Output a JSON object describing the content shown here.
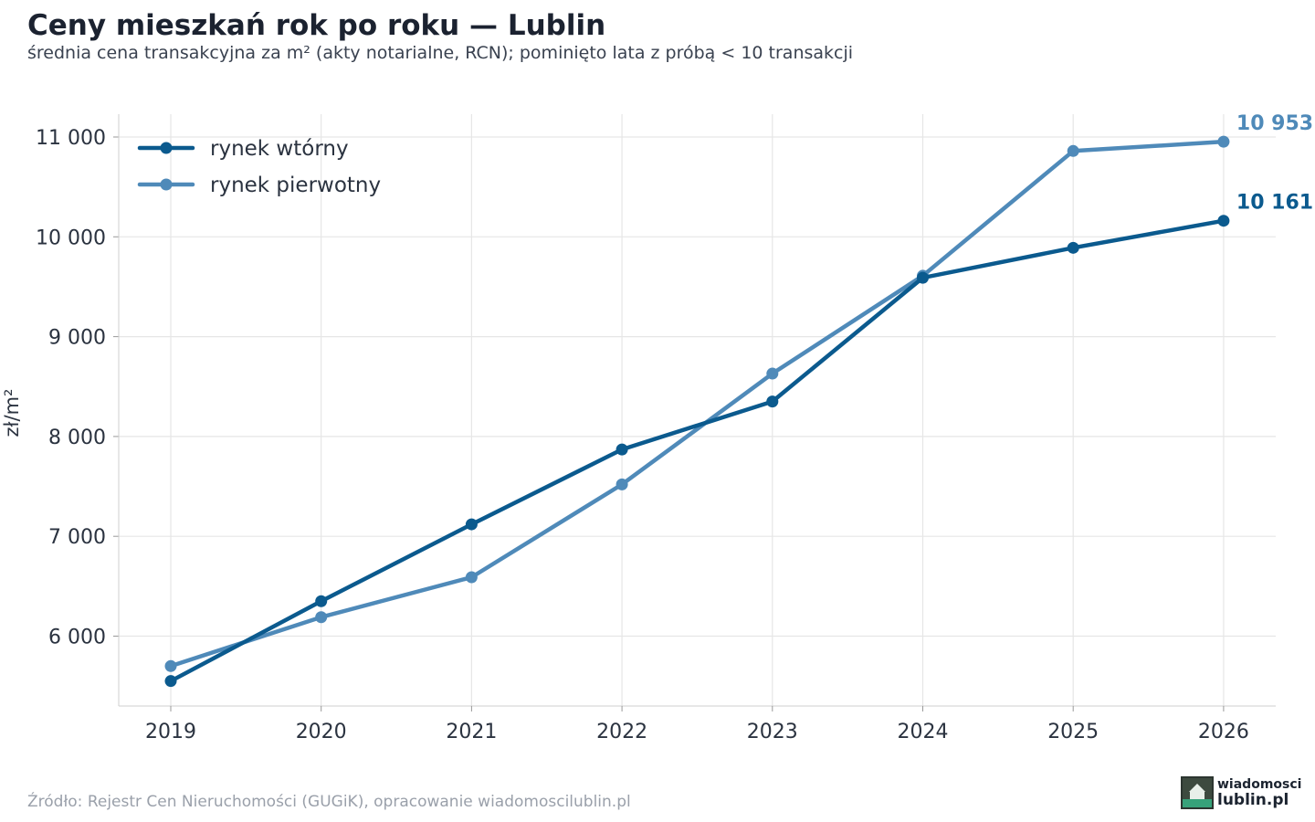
{
  "title": "Ceny mieszkań rok po roku — Lublin",
  "subtitle": "średnia cena transakcyjna za m² (akty notarialne, RCN); pominięto lata z próbą < 10 transakcji",
  "source": "Źródło: Rejestr Cen Nieruchomości (GUGiK), opracowanie wiadomoscilublin.pl",
  "logo": {
    "line1": "wiadomosci",
    "line2": "lublin.pl",
    "icon": "house-logo-icon"
  },
  "colors": {
    "secondary": "#0b5a8e",
    "primary": "#4f8ab9",
    "grid": "#e6e6e6",
    "axis_text": "#2b3340"
  },
  "chart_data": {
    "type": "line",
    "title": "Ceny mieszkań rok po roku — Lublin",
    "ylabel": "zł/m²",
    "xlabel": "",
    "x": [
      2019,
      2020,
      2021,
      2022,
      2023,
      2024,
      2025,
      2026
    ],
    "x_tick_labels": [
      "2019",
      "2020",
      "2021",
      "2022",
      "2023",
      "2024",
      "2025",
      "2026"
    ],
    "ylim": [
      4300,
      11200
    ],
    "y_ticks": [
      6000,
      7000,
      8000,
      9000,
      10000,
      11000
    ],
    "y_tick_labels": [
      "6 000",
      "7 000",
      "8 000",
      "9 000",
      "10 000",
      "11 000"
    ],
    "grid": true,
    "legend_position": "top-left",
    "series": [
      {
        "name": "rynek wtórny",
        "color": "#0b5a8e",
        "values": [
          5550,
          6350,
          7120,
          7870,
          8350,
          9590,
          9890,
          10161
        ],
        "end_label": "10 161"
      },
      {
        "name": "rynek pierwotny",
        "color": "#4f8ab9",
        "values": [
          5700,
          6190,
          6590,
          7520,
          8630,
          9610,
          10860,
          10953
        ],
        "end_label": "10 953"
      }
    ]
  }
}
